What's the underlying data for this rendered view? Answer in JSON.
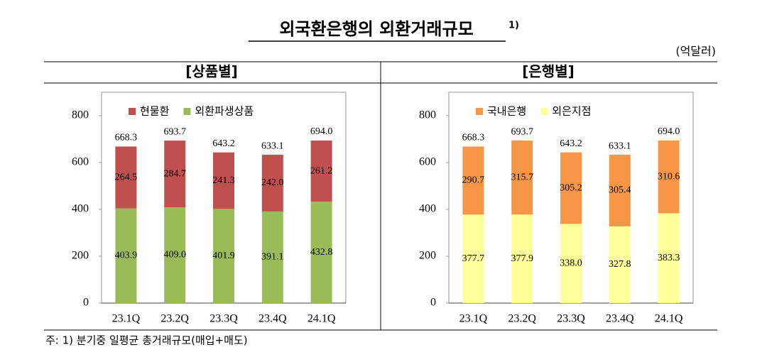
{
  "title": "외국환은행의 외환거래규모",
  "title_note": "1)",
  "unit": "(억달러)",
  "note": "주: 1) 분기중 일평균 총거래규모(매입+매도)",
  "chart_data": [
    {
      "type": "stacked-bar",
      "title": "[상품별]",
      "categories": [
        "23.1Q",
        "23.2Q",
        "23.3Q",
        "23.4Q",
        "24.1Q"
      ],
      "series": [
        {
          "name": "외환파생상품",
          "color": "#9bbb59",
          "values": [
            403.9,
            409.0,
            401.9,
            391.1,
            432.8
          ],
          "value_labels": [
            "403.9",
            "409.0",
            "401.9",
            "391.1",
            "432.8"
          ]
        },
        {
          "name": "현물환",
          "color": "#c0504d",
          "values": [
            264.5,
            284.7,
            241.3,
            242.0,
            261.2
          ],
          "value_labels": [
            "264.5",
            "284.7",
            "241.3",
            "242.0",
            "261.2"
          ]
        }
      ],
      "totals": [
        668.3,
        693.7,
        643.2,
        633.1,
        694.0
      ],
      "total_labels": [
        "668.3",
        "693.7",
        "643.2",
        "633.1",
        "694.0"
      ],
      "ylim": [
        0,
        900
      ],
      "yticks": [
        0,
        200,
        400,
        600,
        800
      ],
      "legend": "top"
    },
    {
      "type": "stacked-bar",
      "title": "[은행별]",
      "categories": [
        "23.1Q",
        "23.2Q",
        "23.3Q",
        "23.4Q",
        "24.1Q"
      ],
      "series": [
        {
          "name": "외은지점",
          "color": "#ffff99",
          "values": [
            377.7,
            377.9,
            338.0,
            327.8,
            383.3
          ],
          "value_labels": [
            "377.7",
            "377.9",
            "338.0",
            "327.8",
            "383.3"
          ]
        },
        {
          "name": "국내은행",
          "color": "#f79646",
          "values": [
            290.7,
            315.7,
            305.2,
            305.4,
            310.6
          ],
          "value_labels": [
            "290.7",
            "315.7",
            "305.2",
            "305.4",
            "310.6"
          ]
        }
      ],
      "totals": [
        668.3,
        693.7,
        643.2,
        633.1,
        694.0
      ],
      "total_labels": [
        "668.3",
        "693.7",
        "643.2",
        "633.1",
        "694.0"
      ],
      "ylim": [
        0,
        900
      ],
      "yticks": [
        0,
        200,
        400,
        600,
        800
      ],
      "legend": "top"
    }
  ]
}
